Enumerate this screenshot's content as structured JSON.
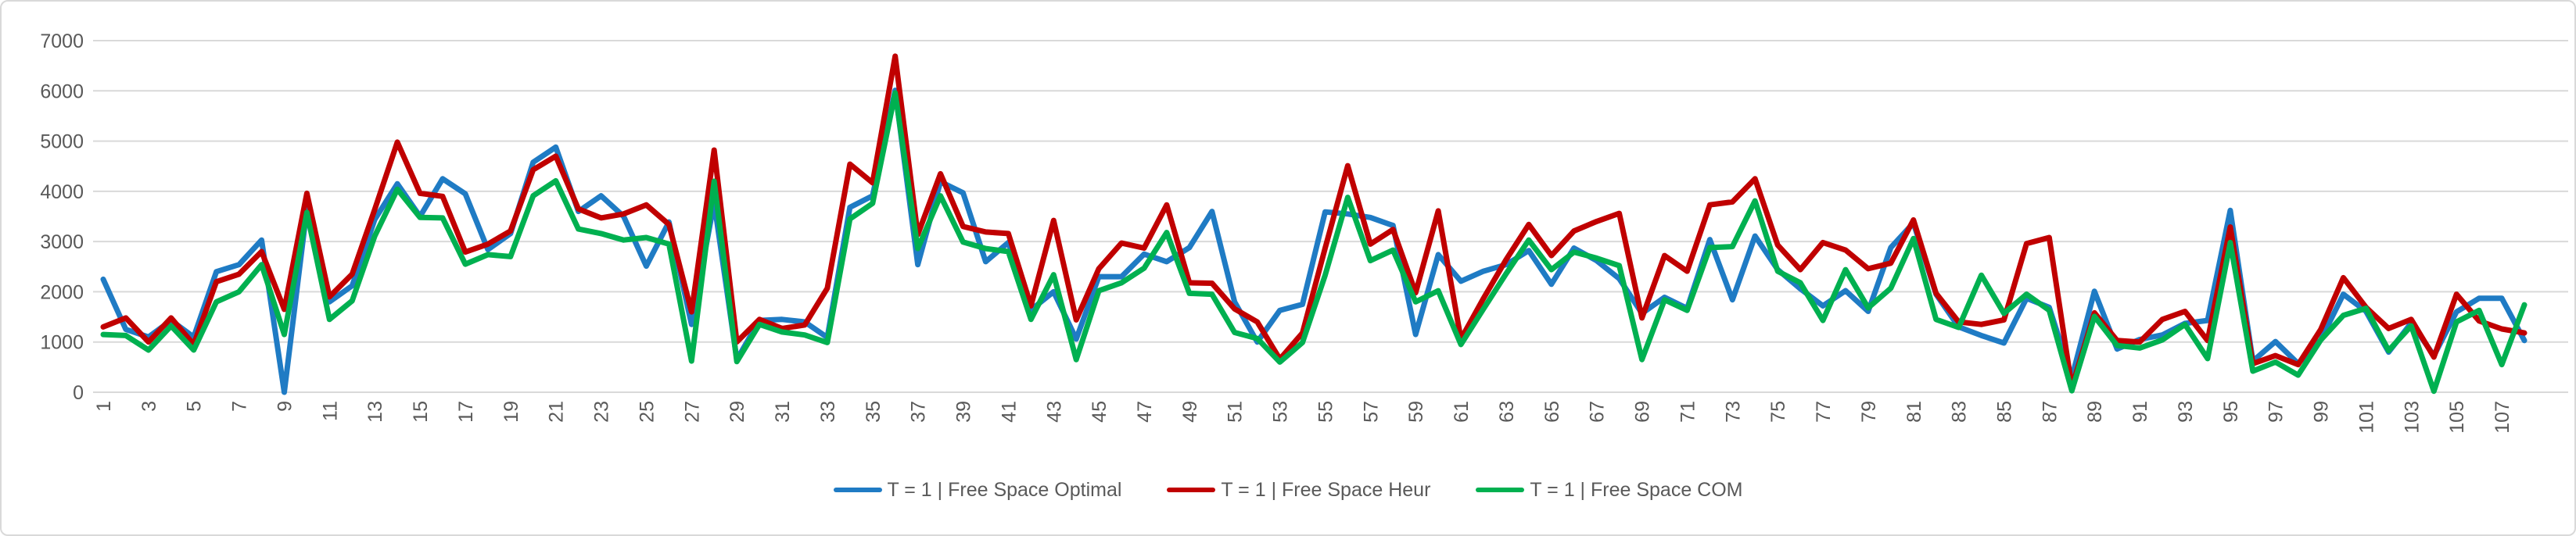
{
  "chart_data": {
    "type": "line",
    "title": "",
    "xlabel": "",
    "ylabel": "",
    "ylim": [
      0,
      7000
    ],
    "y_ticks": [
      0,
      1000,
      2000,
      3000,
      4000,
      5000,
      6000,
      7000
    ],
    "x_tick_labels": [
      1,
      3,
      5,
      7,
      9,
      11,
      13,
      15,
      17,
      19,
      21,
      23,
      25,
      27,
      29,
      31,
      33,
      35,
      37,
      39,
      41,
      43,
      45,
      47,
      49,
      51,
      53,
      55,
      57,
      59,
      61,
      63,
      65,
      67,
      69,
      71,
      73,
      75,
      77,
      79,
      81,
      83,
      85,
      87,
      89,
      91,
      93,
      95,
      97,
      99,
      101,
      103,
      105,
      107
    ],
    "grid": "horizontal",
    "legend_position": "bottom",
    "axis_text_color": "#595959",
    "gridline_color": "#D9D9D9",
    "series": [
      {
        "name": "T = 1 | Free Space Optimal",
        "color": "#1F7BC4",
        "values": [
          2250,
          1250,
          1100,
          1430,
          1100,
          2400,
          2540,
          3030,
          0,
          3650,
          1800,
          2120,
          3440,
          4150,
          3500,
          4250,
          3950,
          2840,
          3160,
          4580,
          4880,
          3600,
          3910,
          3500,
          2510,
          3390,
          1350,
          3780,
          650,
          1430,
          1450,
          1400,
          1090,
          3680,
          3910,
          6010,
          2540,
          4190,
          3970,
          2600,
          2980,
          1640,
          2000,
          1060,
          2300,
          2300,
          2750,
          2600,
          2880,
          3600,
          1800,
          1000,
          1630,
          1750,
          3590,
          3550,
          3480,
          3320,
          1150,
          2740,
          2210,
          2410,
          2540,
          2820,
          2150,
          2870,
          2620,
          2260,
          1570,
          1890,
          1670,
          3040,
          1840,
          3110,
          2440,
          2060,
          1720,
          2020,
          1610,
          2880,
          3370,
          1950,
          1300,
          1130,
          980,
          1870,
          1690,
          290,
          2010,
          860,
          1050,
          1140,
          1370,
          1430,
          3620,
          620,
          1010,
          570,
          1040,
          1950,
          1610,
          800,
          1380,
          730,
          1600,
          1870,
          1870,
          1030
        ]
      },
      {
        "name": "T = 1 | Free Space Heur",
        "color": "#C00000",
        "values": [
          1300,
          1480,
          1000,
          1480,
          950,
          2200,
          2350,
          2800,
          1650,
          3960,
          1900,
          2350,
          3640,
          4980,
          3960,
          3900,
          2790,
          2950,
          3210,
          4430,
          4700,
          3650,
          3470,
          3550,
          3730,
          3340,
          1600,
          4820,
          1000,
          1450,
          1270,
          1340,
          2070,
          4540,
          4170,
          6690,
          3140,
          4350,
          3300,
          3190,
          3160,
          1720,
          3420,
          1440,
          2460,
          2970,
          2870,
          3730,
          2180,
          2170,
          1660,
          1400,
          660,
          1180,
          2870,
          4510,
          2950,
          3240,
          1980,
          3610,
          1060,
          1870,
          2640,
          3340,
          2720,
          3210,
          3400,
          3560,
          1480,
          2720,
          2410,
          3730,
          3790,
          4250,
          2930,
          2440,
          2980,
          2830,
          2460,
          2570,
          3430,
          1970,
          1400,
          1350,
          1440,
          2960,
          3080,
          100,
          1580,
          1030,
          1000,
          1450,
          1610,
          1030,
          3290,
          570,
          730,
          550,
          1250,
          2280,
          1690,
          1270,
          1450,
          700,
          1950,
          1420,
          1260,
          1180
        ]
      },
      {
        "name": "T = 1 | Free Space COM",
        "color": "#00B050",
        "values": [
          1150,
          1130,
          840,
          1320,
          840,
          1800,
          2000,
          2540,
          1150,
          3580,
          1450,
          1820,
          3110,
          4040,
          3480,
          3470,
          2550,
          2740,
          2700,
          3910,
          4210,
          3250,
          3160,
          3030,
          3080,
          2950,
          620,
          4200,
          610,
          1350,
          1200,
          1140,
          990,
          3450,
          3760,
          5960,
          2860,
          3910,
          2990,
          2860,
          2800,
          1450,
          2340,
          650,
          2020,
          2180,
          2470,
          3180,
          1970,
          1950,
          1190,
          1070,
          600,
          990,
          2330,
          3880,
          2620,
          2830,
          1800,
          2020,
          950,
          1660,
          2360,
          3030,
          2440,
          2790,
          2670,
          2520,
          650,
          1840,
          1630,
          2880,
          2900,
          3810,
          2410,
          2180,
          1430,
          2440,
          1680,
          2070,
          3060,
          1450,
          1290,
          2330,
          1570,
          1950,
          1630,
          30,
          1510,
          930,
          880,
          1040,
          1350,
          670,
          2980,
          420,
          600,
          340,
          1040,
          1530,
          1670,
          830,
          1320,
          20,
          1400,
          1630,
          550,
          1740
        ]
      }
    ]
  }
}
